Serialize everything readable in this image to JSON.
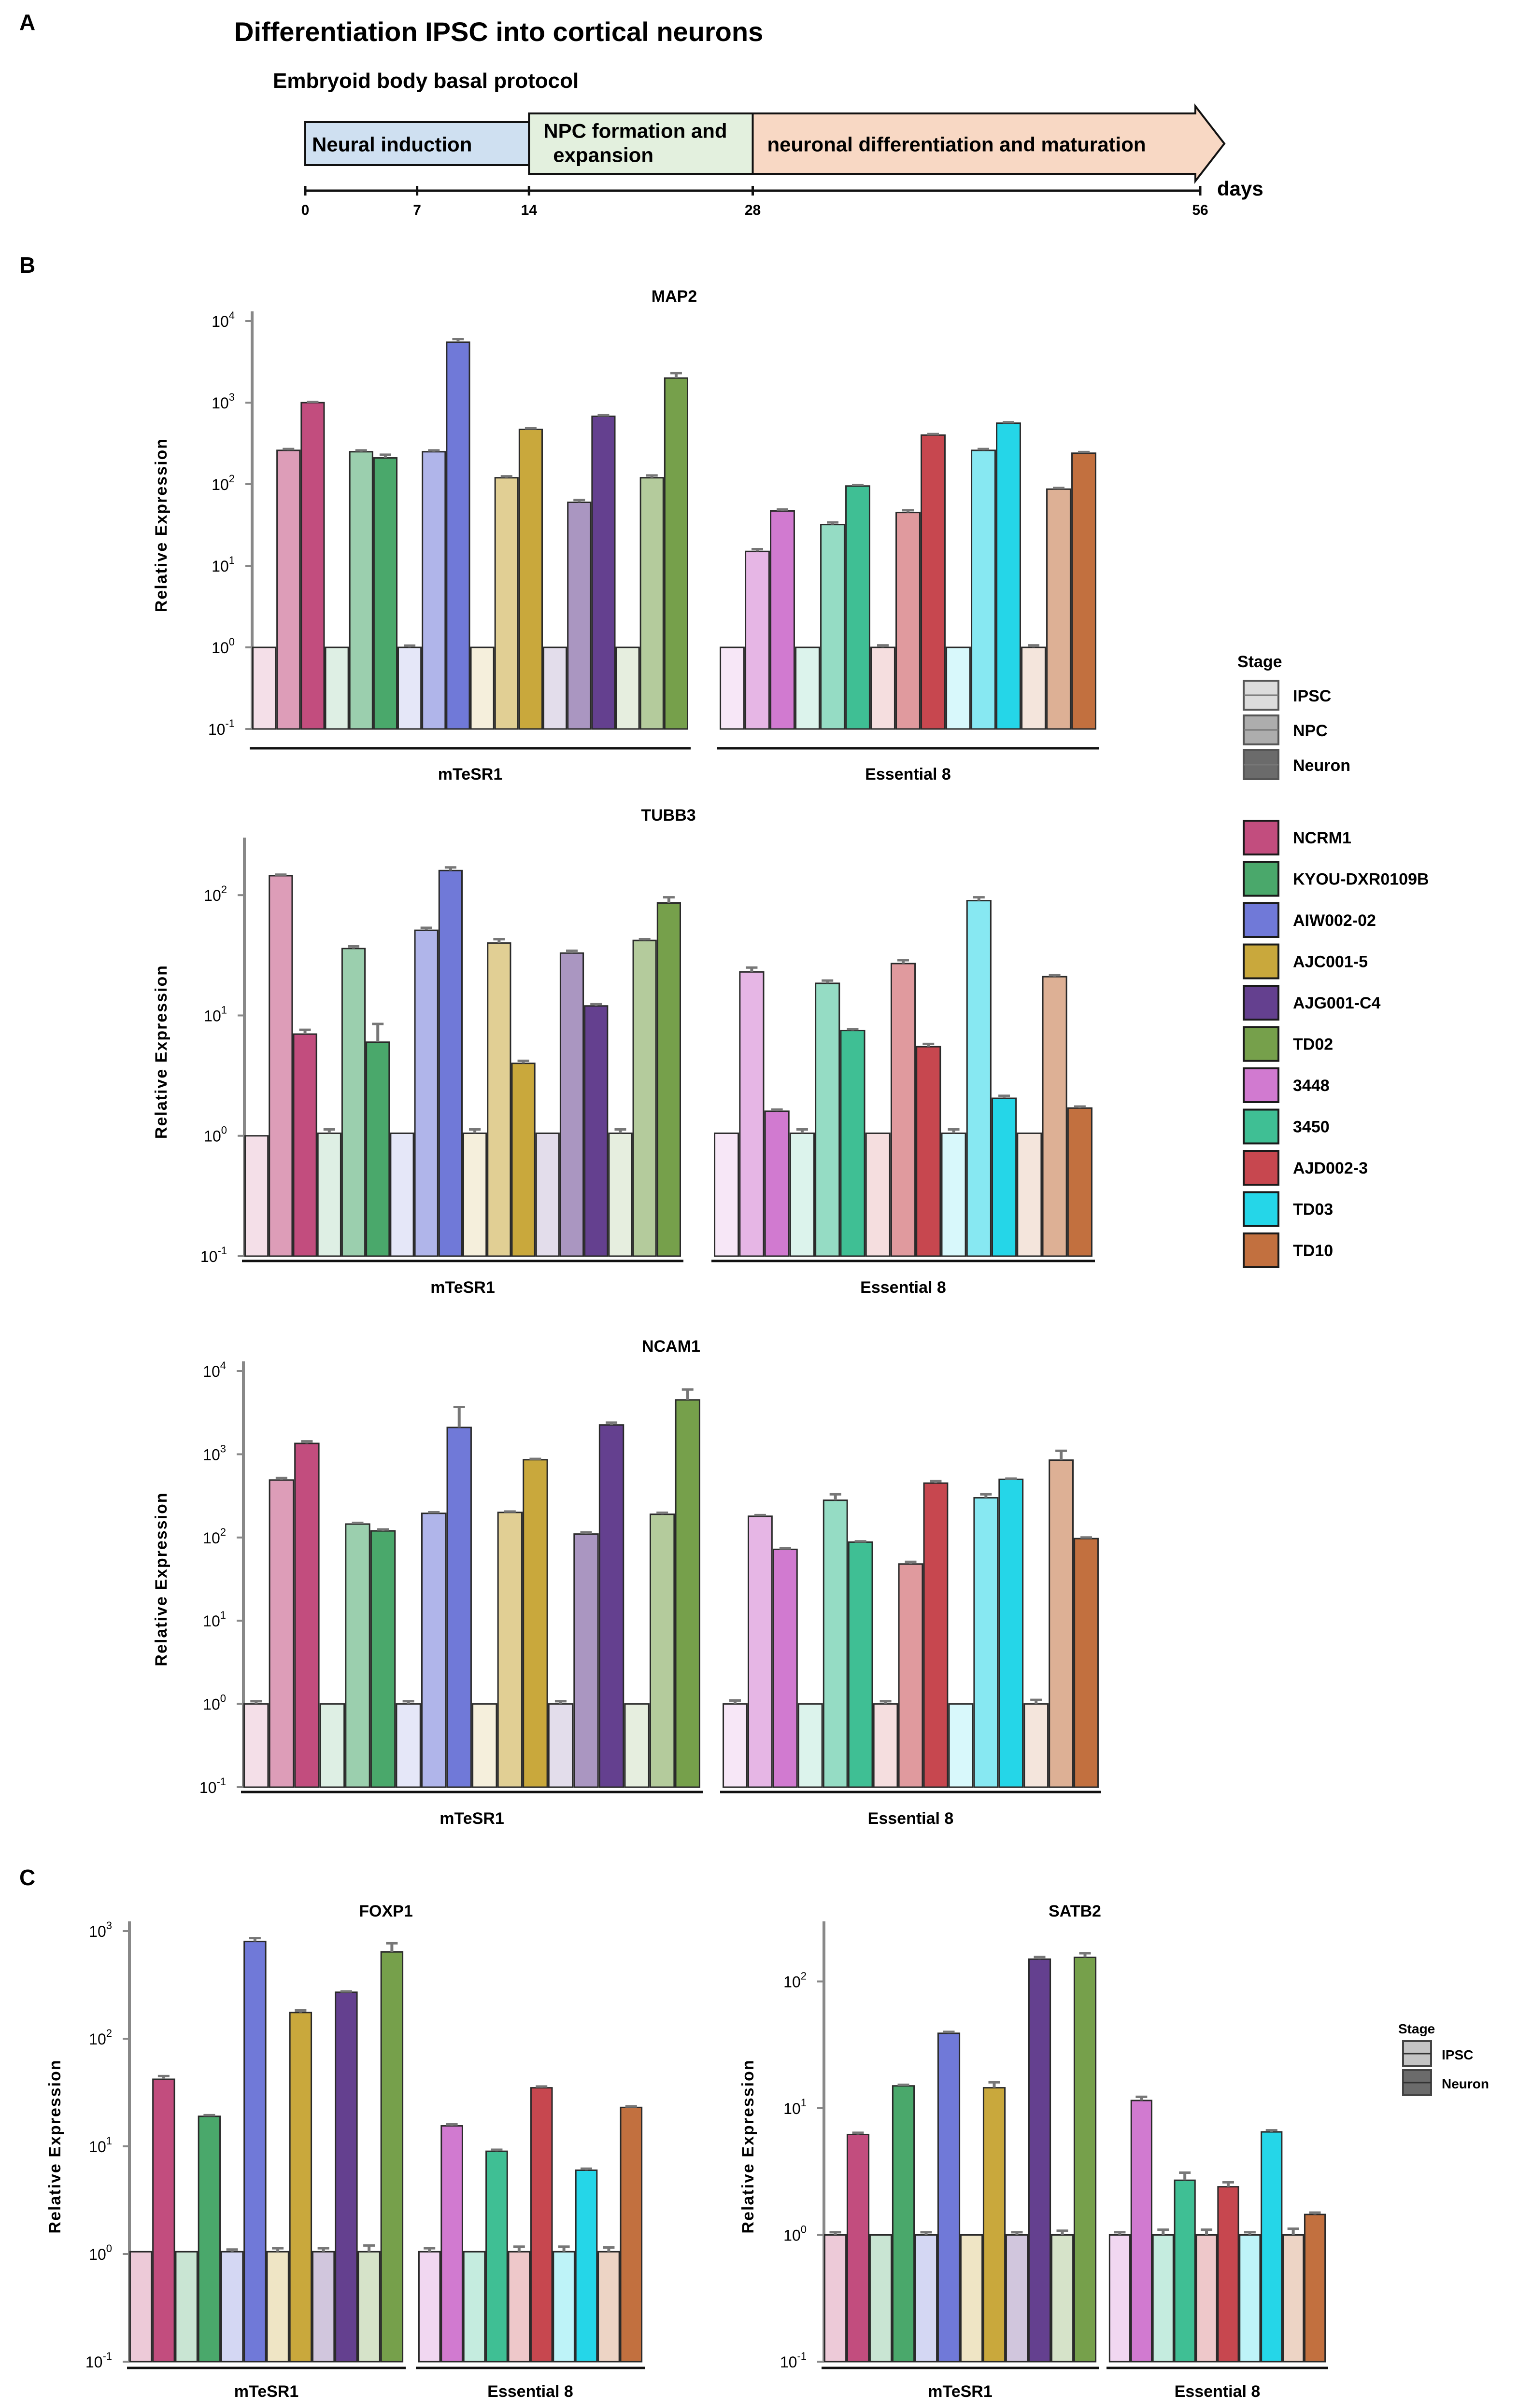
{
  "panels": {
    "a": "A",
    "b": "B",
    "c": "C"
  },
  "timeline": {
    "title": "Differentiation IPSC into cortical neurons",
    "subtitle": "Embryoid body basal protocol",
    "stages": [
      {
        "label_lines": [
          "Neural induction"
        ],
        "start": 0,
        "end": 14,
        "color": "#cfe0f1"
      },
      {
        "label_lines": [
          "NPC formation and",
          "expansion"
        ],
        "start": 14,
        "end": 28,
        "color": "#e3f0de"
      },
      {
        "label_lines": [
          "neuronal differentiation and maturation"
        ],
        "start": 28,
        "end": 56,
        "color": "#f8d8c4"
      }
    ],
    "ticks": [
      0,
      7,
      14,
      28,
      56
    ],
    "unit": "days"
  },
  "lines": {
    "NCRM1": "#c24d7e",
    "KYOU-DXR0109B": "#4aa86b",
    "AIW002-02": "#7079d8",
    "AJC001-5": "#c9a83c",
    "AJG001-C4": "#64408f",
    "TD02": "#76a04b",
    "3448": "#d17ad0",
    "3450": "#3fbf94",
    "AJD002-3": "#c7474f",
    "TD03": "#25d6e8",
    "TD10": "#c2703f"
  },
  "legend_b": {
    "stage_title": "Stage",
    "stages": [
      {
        "label": "IPSC",
        "color": "#dcdcdc"
      },
      {
        "label": "NPC",
        "color": "#adadad"
      },
      {
        "label": "Neuron",
        "color": "#6b6b6b"
      }
    ],
    "lines": [
      "NCRM1",
      "KYOU-DXR0109B",
      "AIW002-02",
      "AJC001-5",
      "AJG001-C4",
      "TD02",
      "3448",
      "3450",
      "AJD002-3",
      "TD03",
      "TD10"
    ]
  },
  "legend_c": {
    "stage_title": "Stage",
    "stages": [
      {
        "label": "IPSC",
        "color": "#c4c4c4"
      },
      {
        "label": "Neuron",
        "color": "#6b6b6b"
      }
    ]
  },
  "chart_data": [
    {
      "type": "bar",
      "title": "MAP2",
      "ylabel": "Relative Expression",
      "yscale": "log10",
      "ylim": [
        0.1,
        10000
      ],
      "stages": [
        "IPSC",
        "NPC",
        "Neuron"
      ],
      "groups": [
        {
          "label": "mTeSR1",
          "lines": [
            {
              "line": "NCRM1",
              "values": [
                1,
                260,
                1000
              ],
              "err": [
                0,
                10,
                20
              ]
            },
            {
              "line": "KYOU-DXR0109B",
              "values": [
                1,
                250,
                210
              ],
              "err": [
                0,
                10,
                20
              ]
            },
            {
              "line": "AIW002-02",
              "values": [
                1,
                250,
                5500
              ],
              "err": [
                0.05,
                10,
                500
              ]
            },
            {
              "line": "AJC001-5",
              "values": [
                1,
                120,
                470
              ],
              "err": [
                0,
                5,
                15
              ]
            },
            {
              "line": "AJG001-C4",
              "values": [
                1,
                60,
                680
              ],
              "err": [
                0,
                4,
                20
              ]
            },
            {
              "line": "TD02",
              "values": [
                1,
                120,
                2000
              ],
              "err": [
                0,
                8,
                300
              ]
            }
          ]
        },
        {
          "label": "Essential 8",
          "lines": [
            {
              "line": "3448",
              "values": [
                1,
                15,
                47
              ],
              "err": [
                0,
                1,
                2
              ]
            },
            {
              "line": "3450",
              "values": [
                1,
                32,
                95
              ],
              "err": [
                0,
                2,
                3
              ]
            },
            {
              "line": "AJD002-3",
              "values": [
                1,
                45,
                400
              ],
              "err": [
                0.06,
                3,
                12
              ]
            },
            {
              "line": "TD03",
              "values": [
                1,
                260,
                560
              ],
              "err": [
                0,
                10,
                15
              ]
            },
            {
              "line": "TD10",
              "values": [
                1,
                87,
                240
              ],
              "err": [
                0.06,
                3,
                8
              ]
            }
          ]
        }
      ]
    },
    {
      "type": "bar",
      "title": "TUBB3",
      "ylabel": "Relative Expression",
      "yscale": "log10",
      "ylim": [
        0.1,
        250
      ],
      "stages": [
        "IPSC",
        "NPC",
        "Neuron"
      ],
      "groups": [
        {
          "label": "mTeSR1",
          "lines": [
            {
              "line": "NCRM1",
              "values": [
                1,
                145,
                7
              ],
              "err": [
                0,
                3,
                0.6
              ]
            },
            {
              "line": "KYOU-DXR0109B",
              "values": [
                1.05,
                36,
                6
              ],
              "err": [
                0.08,
                1.5,
                2.5
              ]
            },
            {
              "line": "AIW002-02",
              "values": [
                1.05,
                51,
                160
              ],
              "err": [
                0,
                2.5,
                10
              ]
            },
            {
              "line": "AJC001-5",
              "values": [
                1.05,
                40,
                4
              ],
              "err": [
                0.08,
                3,
                0.2
              ]
            },
            {
              "line": "AJG001-C4",
              "values": [
                1.05,
                33,
                12
              ],
              "err": [
                0,
                1.5,
                0.4
              ]
            },
            {
              "line": "TD02",
              "values": [
                1.05,
                42,
                86
              ],
              "err": [
                0.08,
                1,
                10
              ]
            }
          ]
        },
        {
          "label": "Essential 8",
          "lines": [
            {
              "line": "3448",
              "values": [
                1.05,
                23,
                1.6
              ],
              "err": [
                0,
                2,
                0.05
              ]
            },
            {
              "line": "3450",
              "values": [
                1.05,
                18.5,
                7.5
              ],
              "err": [
                0.08,
                1,
                0.2
              ]
            },
            {
              "line": "AJD002-3",
              "values": [
                1.05,
                27,
                5.5
              ],
              "err": [
                0,
                1.8,
                0.3
              ]
            },
            {
              "line": "TD03",
              "values": [
                1.05,
                90,
                2.05
              ],
              "err": [
                0.08,
                6,
                0.1
              ]
            },
            {
              "line": "TD10",
              "values": [
                1.05,
                21,
                1.7
              ],
              "err": [
                0,
                0.6,
                0.05
              ]
            }
          ]
        }
      ]
    },
    {
      "type": "bar",
      "title": "NCAM1",
      "ylabel": "Relative Expression",
      "yscale": "log10",
      "ylim": [
        0.1,
        10000
      ],
      "stages": [
        "IPSC",
        "NPC",
        "Neuron"
      ],
      "groups": [
        {
          "label": "mTeSR1",
          "lines": [
            {
              "line": "NCRM1",
              "values": [
                1,
                490,
                1350
              ],
              "err": [
                0.08,
                30,
                80
              ]
            },
            {
              "line": "KYOU-DXR0109B",
              "values": [
                1,
                145,
                120
              ],
              "err": [
                0,
                5,
                5
              ]
            },
            {
              "line": "AIW002-02",
              "values": [
                1,
                195,
                2100
              ],
              "err": [
                0.08,
                6,
                1600
              ]
            },
            {
              "line": "AJC001-5",
              "values": [
                1,
                200,
                860
              ],
              "err": [
                0,
                5,
                20
              ]
            },
            {
              "line": "AJG001-C4",
              "values": [
                1,
                110,
                2250
              ],
              "err": [
                0.08,
                5,
                150
              ]
            },
            {
              "line": "TD02",
              "values": [
                1,
                190,
                4500
              ],
              "err": [
                0,
                8,
                1500
              ]
            }
          ]
        },
        {
          "label": "Essential 8",
          "lines": [
            {
              "line": "3448",
              "values": [
                1,
                180,
                72
              ],
              "err": [
                0.1,
                6,
                2
              ]
            },
            {
              "line": "3450",
              "values": [
                1,
                280,
                88
              ],
              "err": [
                0,
                50,
                2
              ]
            },
            {
              "line": "AJD002-3",
              "values": [
                1,
                48,
                450
              ],
              "err": [
                0.08,
                3,
                25
              ]
            },
            {
              "line": "TD03",
              "values": [
                1,
                300,
                500
              ],
              "err": [
                0,
                30,
                10
              ]
            },
            {
              "line": "TD10",
              "values": [
                1,
                850,
                97
              ],
              "err": [
                0.12,
                250,
                3
              ]
            }
          ]
        }
      ]
    },
    {
      "type": "bar",
      "title": "FOXP1",
      "ylabel": "Relative Expression",
      "yscale": "log10",
      "ylim": [
        0.1,
        1000
      ],
      "stages": [
        "IPSC",
        "Neuron"
      ],
      "groups": [
        {
          "label": "mTeSR1",
          "lines": [
            {
              "line": "NCRM1",
              "values": [
                1.05,
                42
              ],
              "err": [
                0,
                3
              ]
            },
            {
              "line": "KYOU-DXR0109B",
              "values": [
                1.05,
                19
              ],
              "err": [
                0,
                0.5
              ]
            },
            {
              "line": "AIW002-02",
              "values": [
                1.05,
                800
              ],
              "err": [
                0.05,
                60
              ]
            },
            {
              "line": "AJC001-5",
              "values": [
                1.05,
                175
              ],
              "err": [
                0.08,
                8
              ]
            },
            {
              "line": "AJG001-C4",
              "values": [
                1.05,
                270
              ],
              "err": [
                0.08,
                5
              ]
            },
            {
              "line": "TD02",
              "values": [
                1.05,
                640
              ],
              "err": [
                0.15,
                130
              ]
            }
          ]
        },
        {
          "label": "Essential 8",
          "lines": [
            {
              "line": "3448",
              "values": [
                1.05,
                15.5
              ],
              "err": [
                0.08,
                0.5
              ]
            },
            {
              "line": "3450",
              "values": [
                1.05,
                9
              ],
              "err": [
                0,
                0.3
              ]
            },
            {
              "line": "AJD002-3",
              "values": [
                1.05,
                35
              ],
              "err": [
                0.12,
                1
              ]
            },
            {
              "line": "TD03",
              "values": [
                1.05,
                6
              ],
              "err": [
                0.12,
                0.2
              ]
            },
            {
              "line": "TD10",
              "values": [
                1.05,
                23
              ],
              "err": [
                0.1,
                0.5
              ]
            }
          ]
        }
      ]
    },
    {
      "type": "bar",
      "title": "SATB2",
      "ylabel": "Relative Expression",
      "yscale": "log10",
      "ylim": [
        0.1,
        250
      ],
      "stages": [
        "IPSC",
        "Neuron"
      ],
      "groups": [
        {
          "label": "mTeSR1",
          "lines": [
            {
              "line": "NCRM1",
              "values": [
                1,
                6.2
              ],
              "err": [
                0.05,
                0.2
              ]
            },
            {
              "line": "KYOU-DXR0109B",
              "values": [
                1,
                15
              ],
              "err": [
                0,
                0.3
              ]
            },
            {
              "line": "AIW002-02",
              "values": [
                1,
                39
              ],
              "err": [
                0.05,
                1
              ]
            },
            {
              "line": "AJC001-5",
              "values": [
                1,
                14.5
              ],
              "err": [
                0,
                1.5
              ]
            },
            {
              "line": "AJG001-C4",
              "values": [
                1,
                150
              ],
              "err": [
                0.05,
                6
              ]
            },
            {
              "line": "TD02",
              "values": [
                1,
                155
              ],
              "err": [
                0.08,
                12
              ]
            }
          ]
        },
        {
          "label": "Essential 8",
          "lines": [
            {
              "line": "3448",
              "values": [
                1,
                11.5
              ],
              "err": [
                0.05,
                0.8
              ]
            },
            {
              "line": "3450",
              "values": [
                1,
                2.7
              ],
              "err": [
                0.1,
                0.4
              ]
            },
            {
              "line": "AJD002-3",
              "values": [
                1,
                2.4
              ],
              "err": [
                0.1,
                0.2
              ]
            },
            {
              "line": "TD03",
              "values": [
                1,
                6.5
              ],
              "err": [
                0.05,
                0.2
              ]
            },
            {
              "line": "TD10",
              "values": [
                1,
                1.45
              ],
              "err": [
                0.12,
                0.05
              ]
            }
          ]
        }
      ]
    }
  ]
}
